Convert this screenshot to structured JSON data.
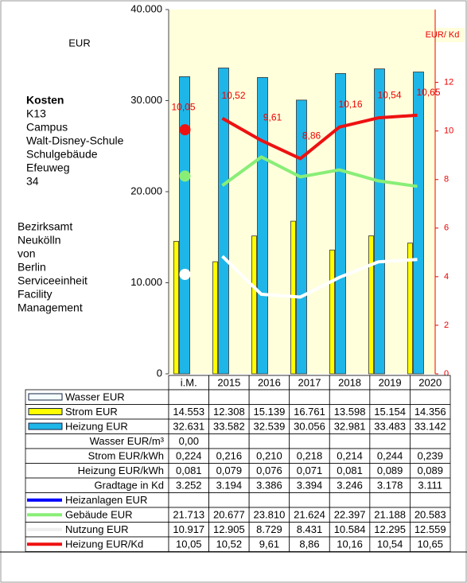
{
  "chart_data": {
    "type": "bar",
    "y_label": "EUR",
    "y2_label": "EUR/ Kd",
    "building_lines": [
      "Kosten",
      "K13",
      "Campus",
      "Walt-Disney-Schule",
      "Schulgebäude",
      "Efeuweg",
      "34"
    ],
    "owner_lines": [
      "Bezirksamt",
      "Neukölln",
      "von",
      "Berlin",
      "Serviceeinheit",
      "Facility",
      "Management"
    ],
    "categories": [
      "i.M.",
      "2015",
      "2016",
      "2017",
      "2018",
      "2019",
      "2020"
    ],
    "ylim": [
      0,
      40000
    ],
    "yticks": [
      0,
      {
        "value": 10000,
        "label": "10.000"
      },
      {
        "value": 20000,
        "label": "20.000"
      },
      {
        "value": 30000,
        "label": "30.000"
      },
      {
        "value": 40000,
        "label": "40.000"
      }
    ],
    "y2lim": [
      0,
      15
    ],
    "y2ticks": [
      0,
      2,
      4,
      6,
      8,
      10,
      12
    ],
    "isolated_first_point": true,
    "series": [
      {
        "name": "Wasser EUR",
        "kind": "bar",
        "color": "#f4fffd",
        "values": [
          null,
          null,
          null,
          null,
          null,
          null,
          null
        ],
        "value_labels": [
          null,
          null,
          null,
          null,
          null,
          null,
          null
        ]
      },
      {
        "name": "Strom EUR",
        "kind": "bar",
        "color": "#ffff00",
        "values": [
          14553,
          12308,
          15139,
          16761,
          13598,
          15154,
          14356
        ],
        "value_labels": [
          "14.553",
          "12.308",
          "15.139",
          "16.761",
          "13.598",
          "15.154",
          "14.356"
        ]
      },
      {
        "name": "Heizung EUR",
        "kind": "bar",
        "color": "#1eb6e8",
        "values": [
          32631,
          33582,
          32539,
          30056,
          32981,
          33483,
          33142
        ],
        "value_labels": [
          "32.631",
          "33.582",
          "32.539",
          "30.056",
          "32.981",
          "33.483",
          "33.142"
        ]
      },
      {
        "name": "Wasser EUR/m³",
        "kind": "none",
        "cells": [
          "0,00",
          null,
          null,
          null,
          null,
          null,
          null
        ]
      },
      {
        "name": "Strom EUR/kWh",
        "kind": "none",
        "cells": [
          "0,224",
          "0,216",
          "0,210",
          "0,218",
          "0,214",
          "0,244",
          "0,239"
        ]
      },
      {
        "name": "Heizung EUR/kWh",
        "kind": "none",
        "cells": [
          "0,081",
          "0,079",
          "0,076",
          "0,071",
          "0,081",
          "0,089",
          "0,089"
        ]
      },
      {
        "name": "Gradtage in Kd",
        "kind": "none",
        "cells": [
          "3.252",
          "3.194",
          "3.386",
          "3.394",
          "3.246",
          "3.178",
          "3.111"
        ]
      },
      {
        "name": "Heizanlagen EUR",
        "kind": "line",
        "color": "#0000ff",
        "values": [
          null,
          null,
          null,
          null,
          null,
          null,
          null
        ],
        "value_labels": [
          null,
          null,
          null,
          null,
          null,
          null,
          null
        ]
      },
      {
        "name": "Gebäude EUR",
        "kind": "line",
        "color": "#88ee77",
        "values": [
          21713,
          20677,
          23810,
          21624,
          22397,
          21188,
          20583
        ],
        "value_labels": [
          "21.713",
          "20.677",
          "23.810",
          "21.624",
          "22.397",
          "21.188",
          "20.583"
        ]
      },
      {
        "name": "Nutzung EUR",
        "kind": "line",
        "color": "#ffffff",
        "values": [
          10917,
          12905,
          8729,
          8431,
          10584,
          12295,
          12559
        ],
        "value_labels": [
          "10.917",
          "12.905",
          "8.729",
          "8.431",
          "10.584",
          "12.295",
          "12.559"
        ]
      },
      {
        "name": "Heizung EUR/Kd",
        "kind": "line",
        "axis": "y2",
        "color": "#ee1111",
        "show_labels": true,
        "values": [
          10.05,
          10.52,
          9.61,
          8.86,
          10.16,
          10.54,
          10.65
        ],
        "value_labels": [
          "10,05",
          "10,52",
          "9,61",
          "8,86",
          "10,16",
          "10,54",
          "10,65"
        ]
      }
    ]
  }
}
